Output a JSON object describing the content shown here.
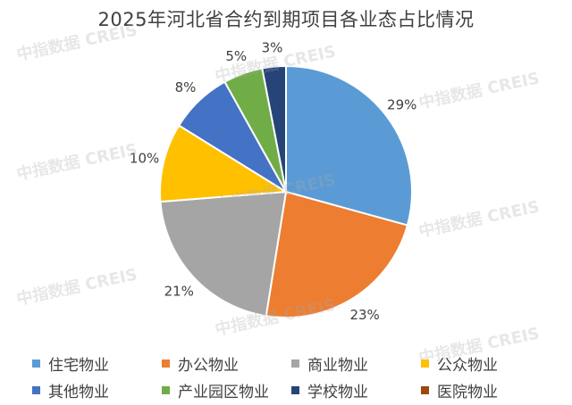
{
  "watermark": {
    "text": "中指数据 CREIS"
  },
  "chart_data": {
    "type": "pie",
    "title": "2025年河北省合约到期项目各业态占比情况",
    "series": [
      {
        "name": "住宅物业",
        "value": 29,
        "label": "29%",
        "color": "#5B9BD5"
      },
      {
        "name": "办公物业",
        "value": 23,
        "label": "23%",
        "color": "#ED7D31"
      },
      {
        "name": "商业物业",
        "value": 21,
        "label": "21%",
        "color": "#A5A5A5"
      },
      {
        "name": "公众物业",
        "value": 10,
        "label": "10%",
        "color": "#FFC000"
      },
      {
        "name": "其他物业",
        "value": 8,
        "label": "8%",
        "color": "#4472C4"
      },
      {
        "name": "产业园区物业",
        "value": 5,
        "label": "5%",
        "color": "#70AD47"
      },
      {
        "name": "学校物业",
        "value": 3,
        "label": "3%",
        "color": "#264478"
      },
      {
        "name": "医院物业",
        "value": 0,
        "label": "",
        "color": "#9E480E"
      }
    ],
    "legend_position": "bottom"
  }
}
